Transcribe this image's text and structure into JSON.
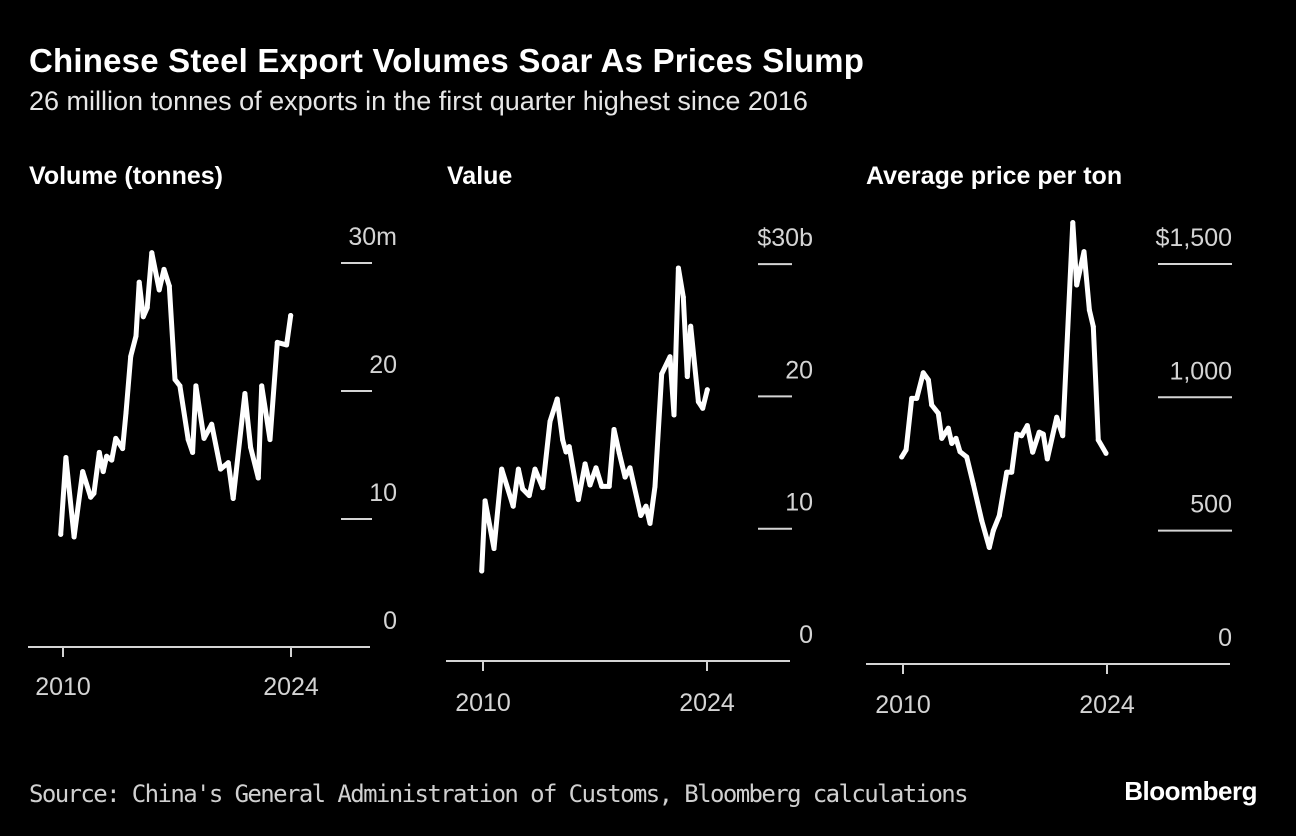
{
  "title": "Chinese Steel Export Volumes Soar As Prices Slump",
  "subtitle": "26 million tonnes of exports in the first quarter highest since 2016",
  "source": "Source: China's General Administration of Customs, Bloomberg calculations",
  "logo": "Bloomberg",
  "colors": {
    "background": "#000000",
    "line": "#ffffff",
    "text": "#ffffff",
    "tick_text": "#d4d4d4"
  },
  "chart_data": [
    {
      "type": "line",
      "title": "Volume (tonnes)",
      "x_ticks": [
        "2010",
        "2024"
      ],
      "y_ticks": [
        "0",
        "10",
        "20",
        "30m"
      ],
      "y_tick_values": [
        0,
        10,
        20,
        30
      ],
      "ylim": [
        0,
        30
      ],
      "unit": "million tonnes",
      "grid": false,
      "x": [
        2009.86,
        2010.18,
        2010.68,
        2011.21,
        2011.7,
        2011.9,
        2012.23,
        2012.47,
        2012.68,
        2012.99,
        2013.24,
        2013.66,
        2013.87,
        2014.16,
        2014.48,
        2014.68,
        2014.93,
        2015.17,
        2015.45,
        2015.91,
        2016.2,
        2016.53,
        2016.88,
        2017.18,
        2017.69,
        2017.96,
        2018.16,
        2018.66,
        2019.13,
        2019.68,
        2020.15,
        2020.45,
        2021.17,
        2021.52,
        2021.99,
        2022.2,
        2022.71,
        2023.16,
        2023.73,
        2023.98
      ],
      "values": [
        8.8,
        14.8,
        8.6,
        13.7,
        11.7,
        12.0,
        15.2,
        13.7,
        14.9,
        14.6,
        16.3,
        15.5,
        18.3,
        22.7,
        24.3,
        28.5,
        25.8,
        26.5,
        30.8,
        27.9,
        29.5,
        28.2,
        20.9,
        20.4,
        16.2,
        15.2,
        20.4,
        16.3,
        17.4,
        13.9,
        14.4,
        11.6,
        19.8,
        15.6,
        13.2,
        20.4,
        16.2,
        23.8,
        23.6,
        25.9
      ]
    },
    {
      "type": "line",
      "title": "Value",
      "x_ticks": [
        "2010",
        "2024"
      ],
      "y_ticks": [
        "0",
        "10",
        "20",
        "$30b"
      ],
      "y_tick_values": [
        0,
        10,
        20,
        30
      ],
      "ylim": [
        0,
        30
      ],
      "unit": "billion USD",
      "grid": false,
      "x": [
        2009.92,
        2010.13,
        2010.69,
        2011.17,
        2011.89,
        2012.21,
        2012.48,
        2012.89,
        2013.25,
        2013.73,
        2014.19,
        2014.64,
        2014.98,
        2015.19,
        2015.39,
        2015.96,
        2016.38,
        2016.69,
        2017.06,
        2017.42,
        2017.89,
        2018.19,
        2018.52,
        2018.88,
        2019.19,
        2019.86,
        2020.19,
        2020.44,
        2020.75,
        2021.17,
        2021.69,
        2021.94,
        2022.21,
        2022.52,
        2022.77,
        2022.98,
        2023.46,
        2023.73,
        2024.02
      ],
      "values": [
        6.8,
        12.1,
        8.5,
        14.5,
        11.7,
        14.5,
        13.0,
        12.5,
        14.5,
        13.1,
        18.1,
        19.8,
        16.7,
        15.8,
        16.2,
        12.2,
        14.9,
        13.3,
        14.6,
        13.2,
        13.2,
        17.5,
        15.7,
        13.9,
        14.6,
        11.0,
        11.7,
        10.4,
        13.2,
        21.7,
        23.0,
        18.6,
        29.7,
        27.5,
        21.5,
        25.3,
        19.6,
        19.1,
        20.5
      ]
    },
    {
      "type": "line",
      "title": "Average price per ton",
      "x_ticks": [
        "2010",
        "2024"
      ],
      "y_ticks": [
        "0",
        "500",
        "1,000",
        "$1,500"
      ],
      "y_tick_values": [
        0,
        500,
        1000,
        1500
      ],
      "ylim": [
        0,
        1500
      ],
      "unit": "USD per ton",
      "grid": false,
      "x": [
        2009.91,
        2010.21,
        2010.6,
        2010.94,
        2011.39,
        2011.74,
        2011.97,
        2012.42,
        2012.66,
        2013.11,
        2013.35,
        2013.64,
        2013.91,
        2014.37,
        2014.82,
        2015.4,
        2015.92,
        2016.2,
        2016.61,
        2017.12,
        2017.46,
        2017.8,
        2018.14,
        2018.53,
        2018.9,
        2019.35,
        2019.63,
        2019.9,
        2020.55,
        2020.96,
        2021.65,
        2021.92,
        2022.42,
        2022.79,
        2023.06,
        2023.4,
        2023.93
      ],
      "values": [
        776,
        803,
        996,
        996,
        1092,
        1065,
        971,
        940,
        846,
        884,
        827,
        846,
        796,
        776,
        676,
        538,
        437,
        500,
        556,
        719,
        719,
        862,
        856,
        894,
        794,
        869,
        862,
        769,
        925,
        856,
        1655,
        1421,
        1546,
        1327,
        1265,
        840,
        790
      ]
    }
  ]
}
